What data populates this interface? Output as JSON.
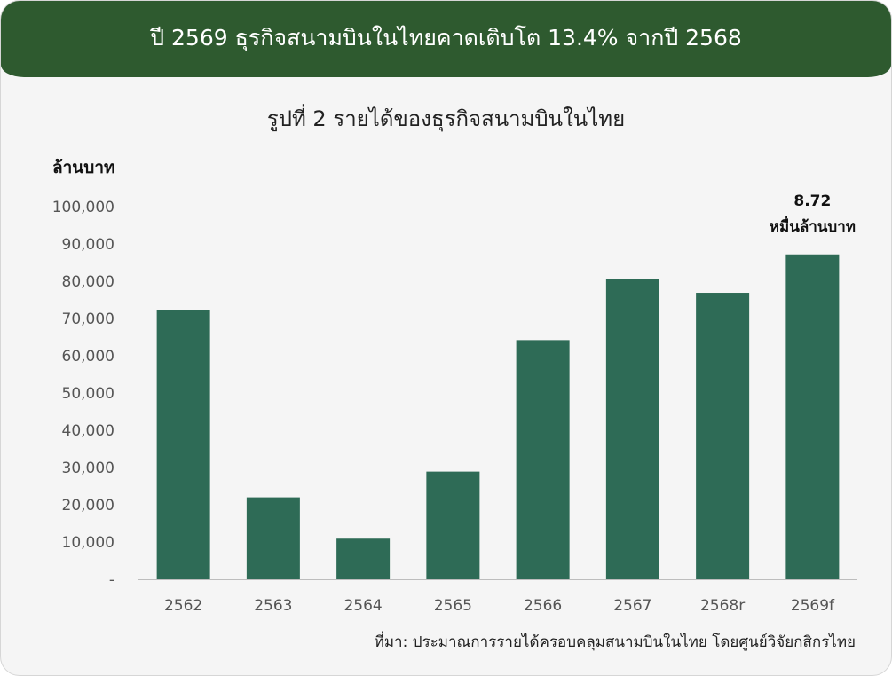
{
  "banner": {
    "title": "ปี 2569 ธุรกิจสนามบินในไทยคาดเติบโต 13.4% จากปี 2568"
  },
  "source_note": "ที่มา: ประมาณการรายได้ครอบคลุมสนามบินในไทย โดยศูนย์วิจัยกสิกรไทย",
  "colors": {
    "banner": "#2e5a2f",
    "bar": "#2e6b56",
    "background": "#f5f5f5"
  },
  "chart_data": {
    "type": "bar",
    "title": "รูปที่ 2 รายได้ของธุรกิจสนามบินในไทย",
    "ylabel": "ล้านบาท",
    "xlabel": "",
    "categories": [
      "2562",
      "2563",
      "2564",
      "2565",
      "2566",
      "2567",
      "2568r",
      "2569f"
    ],
    "values": [
      72200,
      22000,
      10900,
      28900,
      64200,
      80700,
      76900,
      87200
    ],
    "ylim": [
      0,
      100000
    ],
    "yticks": [
      0,
      10000,
      20000,
      30000,
      40000,
      50000,
      60000,
      70000,
      80000,
      90000,
      100000
    ],
    "ytick_labels": [
      "-",
      "10,000",
      "20,000",
      "30,000",
      "40,000",
      "50,000",
      "60,000",
      "70,000",
      "80,000",
      "90,000",
      "100,000"
    ],
    "grid": false,
    "annotation": {
      "category": "2569f",
      "line1": "8.72",
      "line2": "หมื่นล้านบาท"
    }
  }
}
